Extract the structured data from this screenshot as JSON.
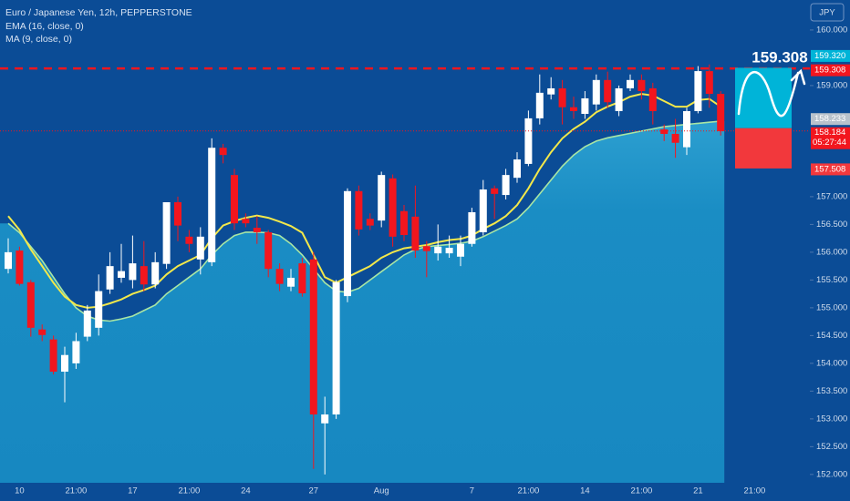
{
  "chart_data": {
    "type": "candlestick",
    "title": "Euro / Japanese Yen, 12h, PEPPERSTONE",
    "currency_button": "JPY",
    "up_color": "#ffffff",
    "down_color": "#f2161e",
    "categories": [
      null,
      "10",
      null,
      null,
      null,
      null,
      "21:00",
      null,
      null,
      null,
      null,
      "17",
      null,
      null,
      null,
      null,
      "21:00",
      null,
      null,
      null,
      null,
      "24",
      null,
      null,
      null,
      null,
      null,
      "27",
      null,
      null,
      null,
      null,
      null,
      "Aug",
      null,
      null,
      null,
      null,
      null,
      null,
      null,
      "7",
      null,
      null,
      null,
      null,
      "21:00",
      null,
      null,
      null,
      null,
      "14",
      null,
      null,
      null,
      null,
      "21:00",
      null,
      null,
      null,
      null,
      "21",
      null,
      null,
      null,
      null,
      "21:00",
      null,
      null,
      null,
      null,
      null
    ],
    "open": [
      155.7,
      156.03,
      155.46,
      154.61,
      154.43,
      153.85,
      154.0,
      154.48,
      154.64,
      155.33,
      155.54,
      155.5,
      155.75,
      155.42,
      155.79,
      156.9,
      156.28,
      155.87,
      155.82,
      157.88,
      157.39,
      156.6,
      156.44,
      156.36,
      155.7,
      155.38,
      155.8,
      155.87,
      152.92,
      153.08,
      155.21,
      157.1,
      156.6,
      156.57,
      157.33,
      156.74,
      156.64,
      156.11,
      155.98,
      155.98,
      155.92,
      156.15,
      156.36,
      157.15,
      157.03,
      157.34,
      157.59,
      158.41,
      158.84,
      158.95,
      158.61,
      158.49,
      158.66,
      159.1,
      158.54,
      158.95,
      159.1,
      158.95,
      158.21,
      158.13,
      157.89,
      158.54,
      159.26,
      158.85,
      null,
      null,
      null,
      null,
      null,
      null,
      null,
      null
    ],
    "high": [
      156.25,
      156.1,
      155.5,
      154.7,
      154.5,
      154.3,
      154.55,
      155.05,
      155.6,
      156.0,
      156.15,
      156.3,
      156.2,
      156.0,
      156.9,
      157.0,
      156.4,
      156.45,
      158.05,
      157.95,
      157.5,
      156.7,
      156.65,
      156.4,
      155.8,
      155.7,
      155.9,
      156.0,
      153.4,
      155.5,
      157.15,
      157.2,
      156.7,
      157.45,
      157.4,
      156.85,
      157.2,
      156.2,
      156.5,
      156.3,
      156.3,
      156.8,
      157.3,
      157.2,
      157.5,
      157.8,
      158.55,
      159.2,
      159.15,
      159.1,
      158.8,
      158.9,
      159.2,
      159.25,
      159.0,
      159.2,
      159.2,
      159.05,
      158.3,
      158.4,
      158.6,
      159.35,
      159.38,
      158.9,
      null,
      null,
      null,
      null,
      null,
      null,
      null,
      null
    ],
    "low": [
      155.62,
      155.4,
      154.48,
      154.4,
      153.8,
      153.3,
      153.9,
      154.4,
      154.5,
      155.25,
      155.45,
      155.35,
      155.3,
      155.35,
      155.7,
      156.2,
      156.0,
      155.6,
      155.75,
      157.6,
      156.4,
      156.45,
      156.15,
      155.55,
      155.3,
      155.3,
      155.2,
      152.1,
      152.0,
      153.0,
      155.1,
      156.3,
      156.4,
      156.45,
      156.1,
      156.2,
      155.9,
      155.55,
      155.85,
      155.9,
      155.75,
      156.1,
      156.3,
      156.6,
      156.95,
      157.25,
      157.55,
      158.3,
      158.75,
      158.3,
      158.4,
      158.4,
      158.55,
      158.6,
      158.45,
      158.9,
      158.75,
      158.3,
      158.0,
      157.7,
      157.75,
      158.5,
      158.6,
      158.1,
      null,
      null,
      null,
      null,
      null,
      null,
      null,
      null
    ],
    "close": [
      156.0,
      155.43,
      154.64,
      154.51,
      153.85,
      154.15,
      154.4,
      154.95,
      155.3,
      155.75,
      155.66,
      155.8,
      155.42,
      155.82,
      156.9,
      156.48,
      156.15,
      156.28,
      157.88,
      157.75,
      156.52,
      156.52,
      156.36,
      155.7,
      155.43,
      155.54,
      155.26,
      153.08,
      153.08,
      155.46,
      157.1,
      156.41,
      156.48,
      157.39,
      156.28,
      156.31,
      156.03,
      156.02,
      156.1,
      156.08,
      156.15,
      156.72,
      157.13,
      157.05,
      157.39,
      157.67,
      158.41,
      158.87,
      158.95,
      158.61,
      158.54,
      158.77,
      159.1,
      158.7,
      158.95,
      159.1,
      158.9,
      158.54,
      158.13,
      157.97,
      158.54,
      159.26,
      158.85,
      158.18,
      null,
      null,
      null,
      null,
      null,
      null,
      null,
      null
    ],
    "series": [
      {
        "name": "EMA (16, close, 0)",
        "color": "#f3e84a",
        "values": [
          156.65,
          156.4,
          156.05,
          155.75,
          155.45,
          155.2,
          155.05,
          155.0,
          155.02,
          155.08,
          155.15,
          155.25,
          155.32,
          155.4,
          155.6,
          155.75,
          155.85,
          155.95,
          156.25,
          156.48,
          156.56,
          156.62,
          156.66,
          156.62,
          156.55,
          156.47,
          156.35,
          155.95,
          155.55,
          155.45,
          155.55,
          155.65,
          155.75,
          155.9,
          156.0,
          156.07,
          156.1,
          156.13,
          156.18,
          156.22,
          156.24,
          156.3,
          156.42,
          156.52,
          156.65,
          156.85,
          157.15,
          157.5,
          157.8,
          158.05,
          158.22,
          158.35,
          158.52,
          158.62,
          158.7,
          158.8,
          158.85,
          158.82,
          158.72,
          158.62,
          158.62,
          158.74,
          158.76,
          158.62,
          null,
          null,
          null,
          null,
          null,
          null,
          null,
          null
        ]
      },
      {
        "name": "MA (9, close, 0)",
        "color": "#a9e6a4",
        "values": [
          156.52,
          156.35,
          156.1,
          155.85,
          155.55,
          155.25,
          155.0,
          154.85,
          154.78,
          154.76,
          154.8,
          154.85,
          154.95,
          155.05,
          155.25,
          155.4,
          155.55,
          155.7,
          155.95,
          156.15,
          156.3,
          156.36,
          156.36,
          156.35,
          156.3,
          156.15,
          155.95,
          155.7,
          155.45,
          155.3,
          155.28,
          155.35,
          155.5,
          155.65,
          155.8,
          155.95,
          156.05,
          156.1,
          156.12,
          156.14,
          156.16,
          156.2,
          156.28,
          156.38,
          156.48,
          156.6,
          156.8,
          157.05,
          157.3,
          157.55,
          157.75,
          157.9,
          158.0,
          158.06,
          158.1,
          158.14,
          158.18,
          158.22,
          158.26,
          158.28,
          158.3,
          158.32,
          158.34,
          158.36,
          null,
          null,
          null,
          null,
          null,
          null,
          null,
          null
        ]
      }
    ],
    "ylim": [
      151.85,
      160.54
    ],
    "yticks": [
      {
        "value": 152,
        "label": "152.000"
      },
      {
        "value": 152.5,
        "label": "152.500"
      },
      {
        "value": 153,
        "label": "153.000"
      },
      {
        "value": 153.5,
        "label": "153.500"
      },
      {
        "value": 154,
        "label": "154.000"
      },
      {
        "value": 154.5,
        "label": "154.500"
      },
      {
        "value": 155,
        "label": "155.000"
      },
      {
        "value": 155.5,
        "label": "155.500"
      },
      {
        "value": 156,
        "label": "156.000"
      },
      {
        "value": 156.5,
        "label": "156.500"
      },
      {
        "value": 157,
        "label": "157.000"
      },
      {
        "value": 159,
        "label": "159.000"
      },
      {
        "value": 160,
        "label": "160.000"
      }
    ],
    "resistance": {
      "value": 159.308,
      "label": "159.308"
    },
    "last_price": {
      "value": 158.184,
      "label": "158.184",
      "countdown": "05:27:44"
    },
    "position": {
      "target": {
        "value": 159.32,
        "label": "159.320"
      },
      "entry": {
        "value": 158.233,
        "label": "158.233"
      },
      "stop": {
        "value": 157.508,
        "label": "157.508"
      }
    }
  }
}
